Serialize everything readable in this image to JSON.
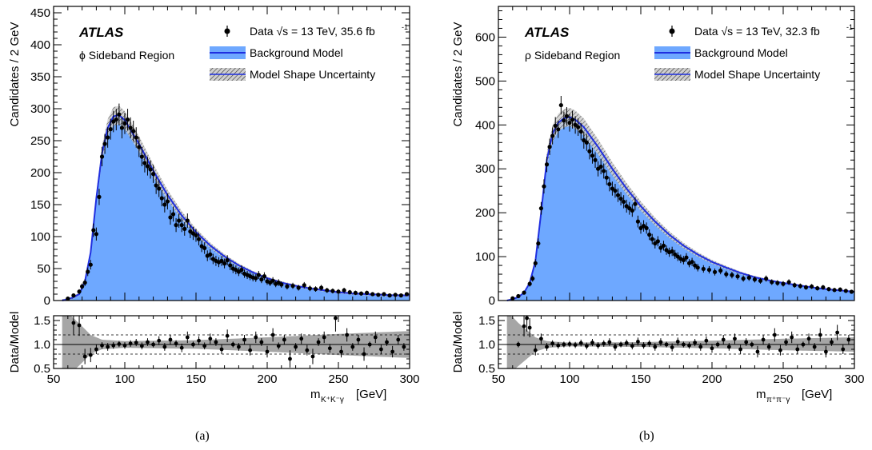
{
  "chart_data": [
    {
      "type": "scatter",
      "caption": "(a)",
      "experiment_label": "ATLAS",
      "region_label": "ϕ Sideband Region",
      "ylabel": "Candidates / 2 GeV",
      "ratio_ylabel": "Data/Model",
      "xlabel": "m",
      "xlabel_sub": "K⁺K⁻γ",
      "xlabel_unit": "[GeV]",
      "xlim": [
        50,
        300
      ],
      "ylim": [
        0,
        460
      ],
      "ratio_ylim": [
        0.5,
        1.6
      ],
      "xticks": [
        50,
        100,
        150,
        200,
        250,
        300
      ],
      "yticks": [
        0,
        50,
        100,
        150,
        200,
        250,
        300,
        350,
        400,
        450
      ],
      "ratio_yticks": [
        0.5,
        1.0,
        1.5
      ],
      "ratio_dashed_lines": [
        0.8,
        1.2
      ],
      "legend": {
        "placement": "top-right",
        "entries": [
          {
            "label": "Data √s =  13 TeV, 35.6 fb",
            "superscript": "-1",
            "marker": "point"
          },
          {
            "label": "Background Model",
            "marker": "filled"
          },
          {
            "label": "Model Shape Uncertainty",
            "marker": "hatched"
          }
        ]
      },
      "model": {
        "x": [
          56,
          60,
          64,
          68,
          72,
          76,
          80,
          84,
          88,
          92,
          96,
          100,
          110,
          120,
          130,
          140,
          150,
          160,
          170,
          180,
          190,
          200,
          210,
          220,
          230,
          240,
          250,
          260,
          270,
          280,
          290,
          300
        ],
        "y": [
          0,
          2,
          5,
          10,
          30,
          75,
          160,
          230,
          270,
          288,
          290,
          282,
          245,
          203,
          165,
          133,
          107,
          86,
          69,
          55,
          44,
          35,
          28,
          23,
          19,
          16,
          13,
          11,
          10,
          9,
          8,
          8
        ]
      },
      "data": {
        "x": [
          60,
          64,
          68,
          70,
          72,
          74,
          76,
          78,
          80,
          82,
          84,
          86,
          88,
          90,
          92,
          94,
          96,
          98,
          100,
          102,
          104,
          106,
          108,
          110,
          112,
          114,
          116,
          118,
          120,
          122,
          124,
          126,
          128,
          130,
          132,
          134,
          136,
          138,
          140,
          142,
          144,
          146,
          148,
          150,
          152,
          154,
          156,
          158,
          160,
          162,
          164,
          166,
          168,
          170,
          172,
          174,
          176,
          178,
          180,
          182,
          184,
          186,
          188,
          190,
          192,
          194,
          196,
          198,
          200,
          202,
          204,
          206,
          208,
          210,
          214,
          218,
          222,
          226,
          230,
          234,
          238,
          242,
          246,
          250,
          254,
          258,
          262,
          266,
          270,
          274,
          278,
          282,
          286,
          290,
          294,
          298
        ],
        "y": [
          3,
          8,
          14,
          22,
          28,
          45,
          56,
          110,
          104,
          162,
          225,
          245,
          255,
          268,
          280,
          283,
          291,
          270,
          277,
          283,
          270,
          265,
          255,
          240,
          225,
          215,
          210,
          205,
          198,
          180,
          175,
          160,
          150,
          155,
          130,
          135,
          118,
          125,
          118,
          112,
          125,
          108,
          105,
          102,
          96,
          85,
          82,
          70,
          72,
          65,
          62,
          60,
          62,
          58,
          63,
          55,
          50,
          48,
          45,
          48,
          42,
          40,
          38,
          36,
          35,
          40,
          33,
          38,
          30,
          28,
          31,
          26,
          28,
          25,
          22,
          23,
          20,
          24,
          19,
          18,
          20,
          16,
          15,
          14,
          16,
          13,
          12,
          11,
          12,
          10,
          9,
          10,
          8,
          9,
          8,
          10
        ]
      },
      "ratio": {
        "x": [
          64,
          68,
          72,
          76,
          80,
          84,
          88,
          92,
          96,
          100,
          104,
          108,
          112,
          116,
          120,
          124,
          128,
          132,
          136,
          140,
          144,
          148,
          152,
          156,
          160,
          164,
          168,
          172,
          176,
          180,
          184,
          188,
          192,
          196,
          200,
          204,
          208,
          212,
          216,
          220,
          224,
          228,
          232,
          236,
          240,
          244,
          248,
          252,
          256,
          260,
          264,
          268,
          272,
          276,
          280,
          284,
          288,
          292,
          296
        ],
        "y": [
          1.45,
          1.4,
          0.75,
          0.78,
          0.9,
          0.98,
          0.95,
          0.98,
          1.01,
          0.98,
          1.02,
          1.04,
          0.97,
          1.05,
          1.0,
          1.08,
          0.95,
          1.1,
          1.02,
          0.93,
          1.15,
          1.0,
          1.08,
          0.97,
          1.12,
          1.05,
          0.9,
          1.18,
          1.0,
          0.95,
          1.1,
          0.88,
          1.15,
          1.05,
          0.85,
          1.2,
          0.97,
          1.1,
          0.7,
          0.95,
          1.12,
          0.88,
          0.75,
          1.05,
          1.15,
          0.92,
          1.55,
          0.85,
          1.2,
          0.95,
          1.1,
          0.8,
          1.0,
          1.15,
          0.9,
          1.05,
          0.85,
          1.1,
          0.95
        ]
      },
      "ratio_band_half_width": {
        "x": [
          56,
          64,
          70,
          76,
          84,
          100,
          150,
          200,
          250,
          300
        ],
        "y": [
          0.8,
          0.55,
          0.38,
          0.2,
          0.1,
          0.07,
          0.09,
          0.15,
          0.22,
          0.28
        ]
      }
    },
    {
      "type": "scatter",
      "caption": "(b)",
      "experiment_label": "ATLAS",
      "region_label": "ρ Sideband Region",
      "ylabel": "Candidates / 2 GeV",
      "ratio_ylabel": "Data/Model",
      "xlabel": "m",
      "xlabel_sub": "π⁺π⁻γ",
      "xlabel_unit": "[GeV]",
      "xlim": [
        50,
        300
      ],
      "ylim": [
        0,
        670
      ],
      "ratio_ylim": [
        0.5,
        1.6
      ],
      "xticks": [
        50,
        100,
        150,
        200,
        250,
        300
      ],
      "yticks": [
        0,
        100,
        200,
        300,
        400,
        500,
        600
      ],
      "ratio_yticks": [
        0.5,
        1.0,
        1.5
      ],
      "ratio_dashed_lines": [
        0.8,
        1.2
      ],
      "legend": {
        "placement": "top-right",
        "entries": [
          {
            "label": "Data √s =  13 TeV, 32.3 fb",
            "superscript": "-1",
            "marker": "point"
          },
          {
            "label": "Background Model",
            "marker": "filled"
          },
          {
            "label": "Model Shape Uncertainty",
            "marker": "hatched"
          }
        ]
      },
      "model": {
        "x": [
          56,
          60,
          64,
          68,
          72,
          76,
          80,
          84,
          88,
          92,
          96,
          100,
          104,
          110,
          120,
          130,
          140,
          150,
          160,
          170,
          180,
          190,
          200,
          210,
          220,
          230,
          240,
          250,
          260,
          270,
          280,
          290,
          300
        ],
        "y": [
          0,
          3,
          8,
          18,
          40,
          90,
          200,
          320,
          380,
          405,
          415,
          418,
          412,
          395,
          350,
          300,
          255,
          215,
          180,
          150,
          125,
          105,
          88,
          75,
          63,
          53,
          46,
          40,
          35,
          30,
          26,
          23,
          20
        ]
      },
      "data": {
        "x": [
          60,
          64,
          68,
          72,
          74,
          76,
          78,
          80,
          82,
          84,
          86,
          88,
          90,
          92,
          94,
          96,
          98,
          100,
          102,
          104,
          106,
          108,
          110,
          112,
          114,
          116,
          118,
          120,
          122,
          124,
          126,
          128,
          130,
          132,
          134,
          136,
          138,
          140,
          142,
          144,
          146,
          148,
          150,
          152,
          154,
          156,
          158,
          160,
          162,
          164,
          166,
          168,
          170,
          172,
          174,
          176,
          178,
          180,
          182,
          184,
          186,
          188,
          190,
          194,
          198,
          202,
          206,
          210,
          214,
          218,
          222,
          226,
          230,
          234,
          238,
          242,
          246,
          250,
          254,
          258,
          262,
          266,
          270,
          274,
          278,
          282,
          286,
          290,
          294,
          298
        ],
        "y": [
          5,
          10,
          18,
          38,
          50,
          85,
          130,
          210,
          260,
          310,
          350,
          375,
          398,
          390,
          445,
          410,
          420,
          405,
          412,
          400,
          395,
          385,
          365,
          360,
          340,
          330,
          320,
          300,
          305,
          295,
          280,
          265,
          255,
          250,
          240,
          232,
          225,
          215,
          210,
          205,
          220,
          180,
          165,
          170,
          165,
          150,
          140,
          130,
          135,
          120,
          125,
          115,
          110,
          112,
          105,
          100,
          95,
          92,
          98,
          85,
          88,
          80,
          75,
          72,
          70,
          65,
          68,
          60,
          58,
          55,
          50,
          52,
          48,
          45,
          50,
          42,
          40,
          38,
          42,
          35,
          33,
          30,
          32,
          28,
          30,
          26,
          24,
          25,
          22,
          20
        ]
      },
      "ratio": {
        "x": [
          64,
          68,
          70,
          72,
          76,
          80,
          84,
          88,
          92,
          96,
          100,
          104,
          108,
          112,
          116,
          120,
          124,
          128,
          132,
          136,
          140,
          144,
          148,
          152,
          156,
          160,
          164,
          168,
          172,
          176,
          180,
          184,
          188,
          192,
          196,
          200,
          204,
          208,
          212,
          216,
          220,
          224,
          228,
          232,
          236,
          240,
          244,
          248,
          252,
          256,
          260,
          264,
          268,
          272,
          276,
          280,
          284,
          288,
          292,
          296
        ],
        "y": [
          1.0,
          1.38,
          1.55,
          1.35,
          0.88,
          1.12,
          0.95,
          1.02,
          0.98,
          1.0,
          1.01,
          0.99,
          1.03,
          0.97,
          1.04,
          0.98,
          1.02,
          1.05,
          0.95,
          1.0,
          1.03,
          0.97,
          1.06,
          0.98,
          1.02,
          0.95,
          1.05,
          1.0,
          0.94,
          1.06,
          1.0,
          0.98,
          1.04,
          0.95,
          1.08,
          0.92,
          1.0,
          1.1,
          0.95,
          1.12,
          0.9,
          1.05,
          1.0,
          0.85,
          1.1,
          0.95,
          1.2,
          0.88,
          1.05,
          1.15,
          0.9,
          1.0,
          1.12,
          0.95,
          1.2,
          0.85,
          1.05,
          1.25,
          0.9,
          1.1
        ]
      },
      "ratio_band_half_width": {
        "x": [
          56,
          64,
          70,
          76,
          84,
          100,
          150,
          200,
          250,
          300
        ],
        "y": [
          0.7,
          0.45,
          0.3,
          0.15,
          0.07,
          0.04,
          0.05,
          0.08,
          0.12,
          0.15
        ]
      }
    }
  ]
}
